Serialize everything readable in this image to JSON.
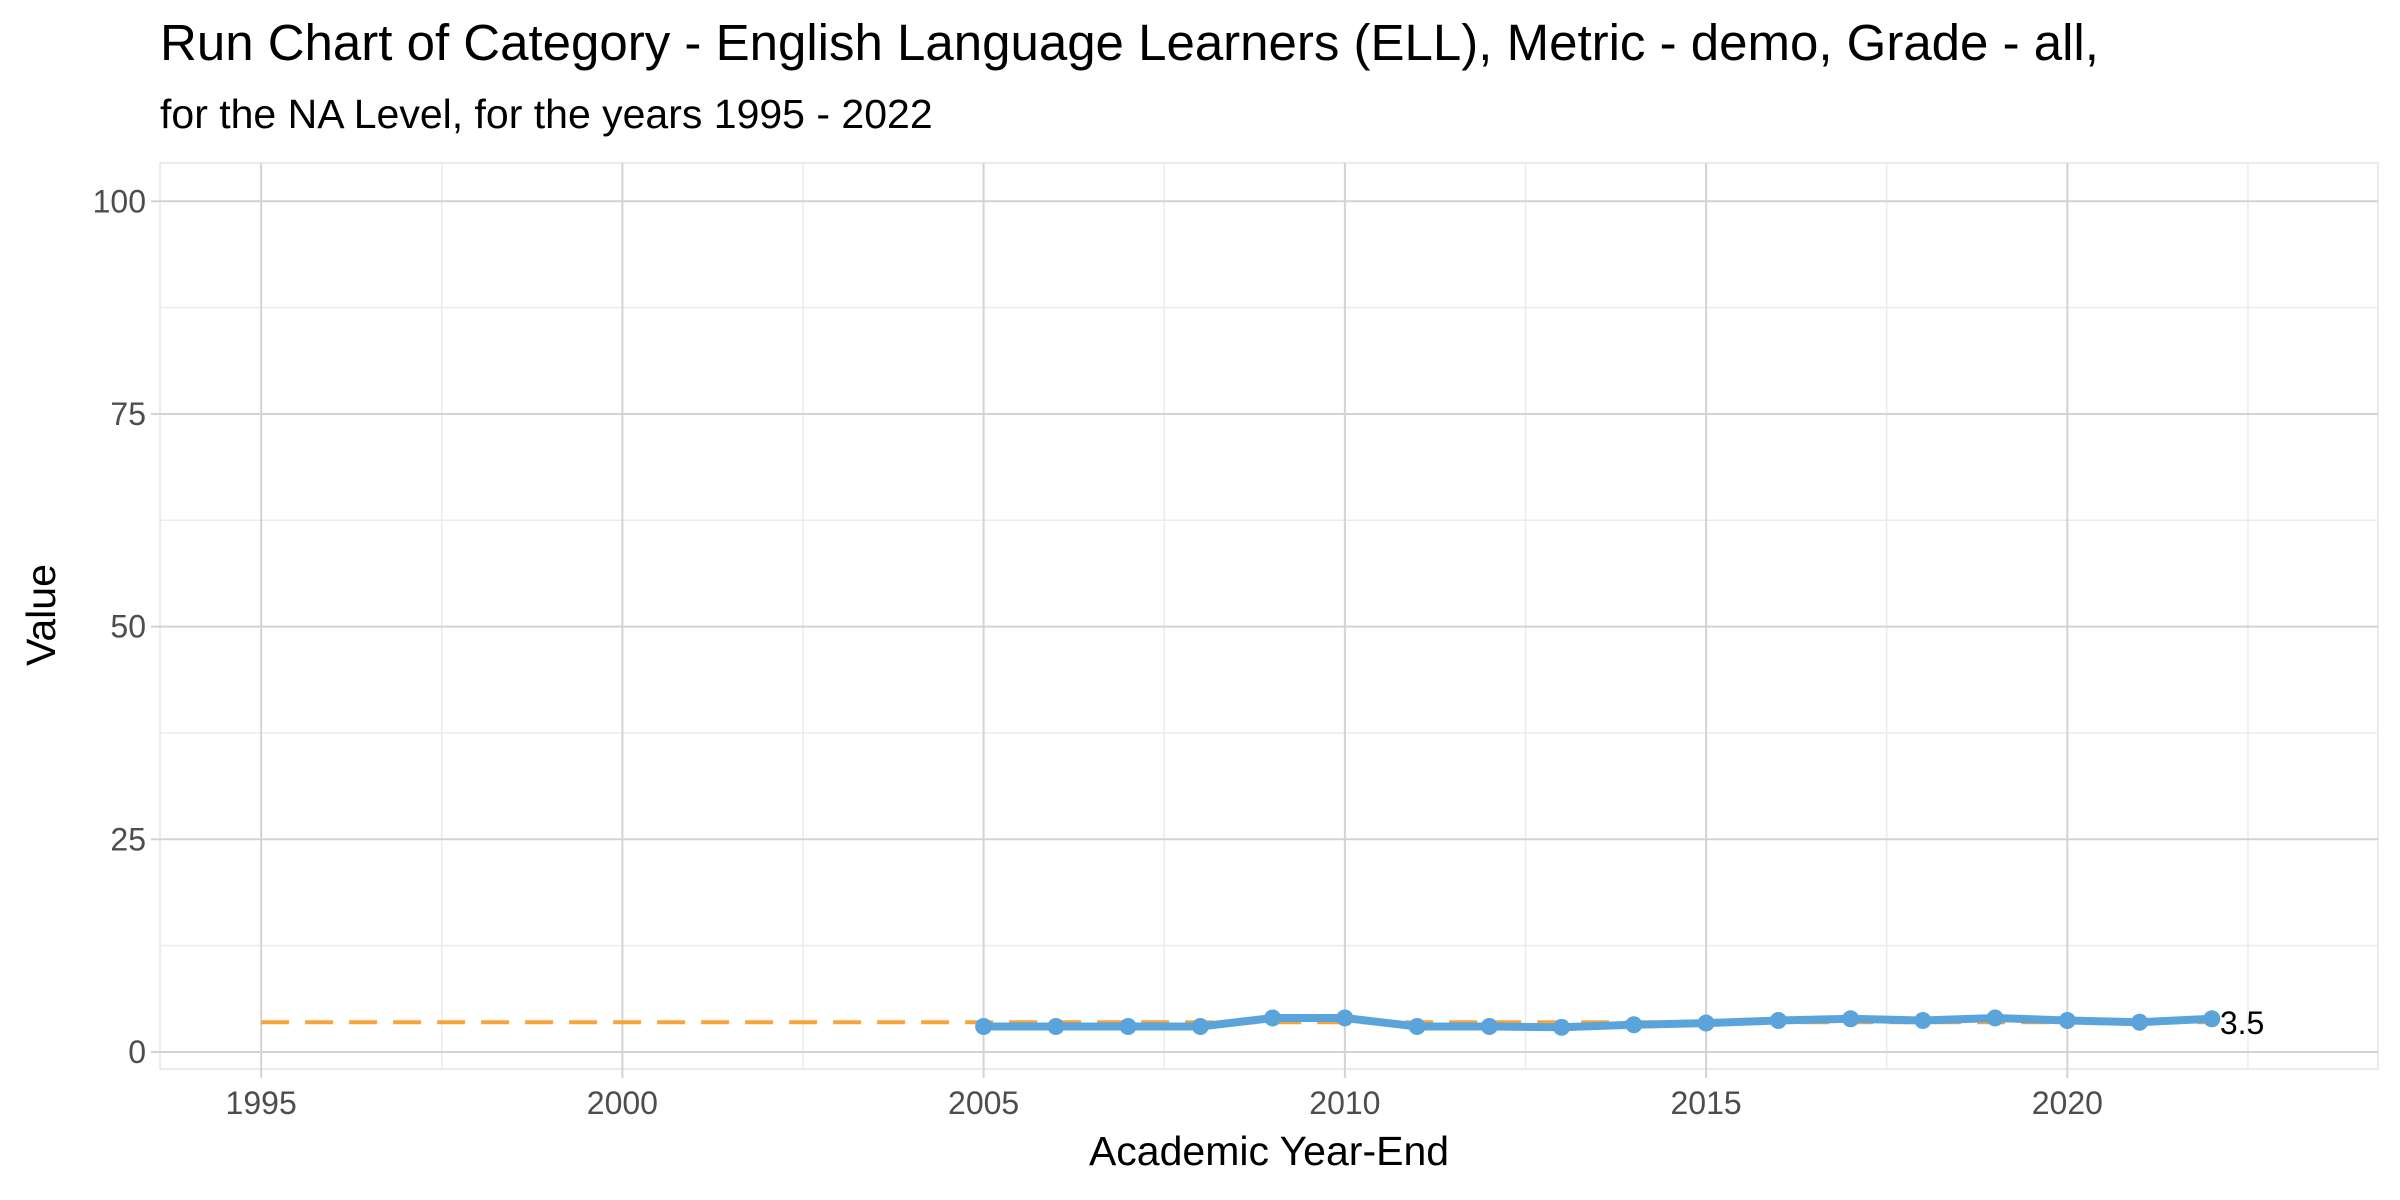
{
  "chart_data": {
    "type": "line",
    "title": "Run Chart of Category -  English Language Learners (ELL), Metric - demo, Grade - all,",
    "subtitle": "for the NA Level, for the years 1995 - 2022",
    "xlabel": "Academic Year-End",
    "ylabel": "Value",
    "xlim": [
      1993.6,
      2024.3
    ],
    "ylim": [
      -2.0,
      104.5
    ],
    "x_ticks": [
      1995,
      2000,
      2005,
      2010,
      2015,
      2020
    ],
    "x_tick_labels": [
      "1995",
      "2000",
      "2005",
      "2010",
      "2015",
      "2020"
    ],
    "y_ticks": [
      0,
      25,
      50,
      75,
      100
    ],
    "y_tick_labels": [
      "0",
      "25",
      "50",
      "75",
      "100"
    ],
    "grid": true,
    "series": [
      {
        "color": "#5BA4DB",
        "x": [
          2005,
          2006,
          2007,
          2008,
          2009,
          2010,
          2011,
          2012,
          2013,
          2014,
          2015,
          2016,
          2017,
          2018,
          2019,
          2020,
          2021,
          2022
        ],
        "y": [
          3.0,
          3.0,
          3.0,
          3.0,
          4.0,
          4.0,
          3.0,
          3.0,
          2.9,
          3.2,
          3.4,
          3.7,
          3.9,
          3.7,
          4.0,
          3.7,
          3.5,
          3.9
        ]
      }
    ],
    "reference_line": {
      "style": "dashed",
      "color": "#F5A33A",
      "x_start": 1995,
      "x_end": 2022,
      "y": 3.5
    },
    "end_label": {
      "text": "3.5",
      "x": 2022,
      "y": 3.5
    }
  }
}
